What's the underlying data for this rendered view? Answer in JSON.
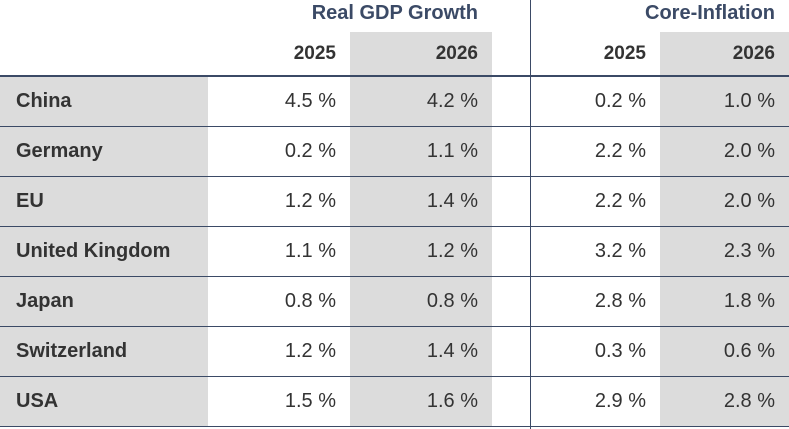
{
  "header": {
    "groups": [
      "Real GDP Growth",
      "Core-Inflation"
    ],
    "years": [
      "2025",
      "2026",
      "2025",
      "2026"
    ]
  },
  "rows": [
    {
      "country": "China",
      "gdp_2025": "4.5 %",
      "gdp_2026": "4.2 %",
      "inf_2025": "0.2 %",
      "inf_2026": "1.0 %"
    },
    {
      "country": "Germany",
      "gdp_2025": "0.2 %",
      "gdp_2026": "1.1 %",
      "inf_2025": "2.2 %",
      "inf_2026": "2.0 %"
    },
    {
      "country": "EU",
      "gdp_2025": "1.2 %",
      "gdp_2026": "1.4 %",
      "inf_2025": "2.2 %",
      "inf_2026": "2.0 %"
    },
    {
      "country": "United Kingdom",
      "gdp_2025": "1.1 %",
      "gdp_2026": "1.2 %",
      "inf_2025": "3.2 %",
      "inf_2026": "2.3 %"
    },
    {
      "country": "Japan",
      "gdp_2025": "0.8 %",
      "gdp_2026": "0.8 %",
      "inf_2025": "2.8 %",
      "inf_2026": "1.8 %"
    },
    {
      "country": "Switzerland",
      "gdp_2025": "1.2 %",
      "gdp_2026": "1.4 %",
      "inf_2025": "0.3 %",
      "inf_2026": "0.6 %"
    },
    {
      "country": "USA",
      "gdp_2025": "1.5 %",
      "gdp_2026": "1.6 %",
      "inf_2025": "2.9 %",
      "inf_2026": "2.8 %"
    }
  ],
  "colors": {
    "header_text": "#3b4a66",
    "shade": "#dcdcdc",
    "rule": "#3b4a66",
    "body_text": "#333333"
  }
}
